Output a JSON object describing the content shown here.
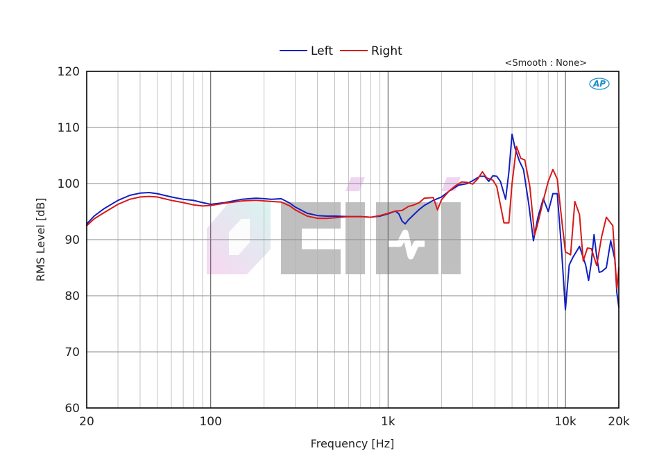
{
  "chart_data": {
    "type": "line",
    "xlabel": "Frequency [Hz]",
    "ylabel": "RMS Level [dB]",
    "x_scale": "log",
    "xlim": [
      20,
      20000
    ],
    "ylim": [
      60,
      120
    ],
    "x_ticks": [
      {
        "value": 20,
        "label": "20"
      },
      {
        "value": 100,
        "label": "100"
      },
      {
        "value": 1000,
        "label": "1k"
      },
      {
        "value": 10000,
        "label": "10k"
      },
      {
        "value": 20000,
        "label": "20k"
      }
    ],
    "y_ticks": [
      60,
      70,
      80,
      90,
      100,
      110,
      120
    ],
    "grid": true,
    "legend_position": "top-center",
    "annotation": "<Smooth : None>",
    "logo_text": "AP",
    "watermark": "CIMI",
    "series": [
      {
        "name": "Left",
        "color": "#1020c0",
        "points": [
          [
            20,
            92.8
          ],
          [
            22,
            94.2
          ],
          [
            25,
            95.5
          ],
          [
            30,
            97
          ],
          [
            35,
            97.9
          ],
          [
            40,
            98.3
          ],
          [
            45,
            98.4
          ],
          [
            50,
            98.2
          ],
          [
            60,
            97.6
          ],
          [
            70,
            97.2
          ],
          [
            80,
            97
          ],
          [
            90,
            96.6
          ],
          [
            100,
            96.3
          ],
          [
            120,
            96.6
          ],
          [
            150,
            97.2
          ],
          [
            180,
            97.4
          ],
          [
            200,
            97.3
          ],
          [
            220,
            97.2
          ],
          [
            250,
            97.3
          ],
          [
            280,
            96.5
          ],
          [
            300,
            95.8
          ],
          [
            350,
            94.7
          ],
          [
            400,
            94.3
          ],
          [
            450,
            94.2
          ],
          [
            500,
            94.2
          ],
          [
            600,
            94.1
          ],
          [
            700,
            94.1
          ],
          [
            800,
            94
          ],
          [
            900,
            94.2
          ],
          [
            1000,
            94.6
          ],
          [
            1100,
            95.1
          ],
          [
            1150,
            94.6
          ],
          [
            1200,
            93.3
          ],
          [
            1250,
            92.8
          ],
          [
            1300,
            93.5
          ],
          [
            1400,
            94.5
          ],
          [
            1500,
            95.4
          ],
          [
            1600,
            96.1
          ],
          [
            1800,
            97
          ],
          [
            2000,
            97.6
          ],
          [
            2200,
            98.6
          ],
          [
            2500,
            99.7
          ],
          [
            2800,
            100
          ],
          [
            3000,
            100.5
          ],
          [
            3300,
            101.3
          ],
          [
            3500,
            101.3
          ],
          [
            3700,
            100.4
          ],
          [
            3900,
            101.4
          ],
          [
            4100,
            101.3
          ],
          [
            4300,
            100.4
          ],
          [
            4600,
            97.2
          ],
          [
            4800,
            102
          ],
          [
            5000,
            108.8
          ],
          [
            5200,
            106.3
          ],
          [
            5500,
            104
          ],
          [
            5800,
            102.5
          ],
          [
            6200,
            96.5
          ],
          [
            6600,
            89.8
          ],
          [
            7000,
            94
          ],
          [
            7500,
            97.3
          ],
          [
            8000,
            95
          ],
          [
            8500,
            98.2
          ],
          [
            9000,
            98.2
          ],
          [
            9500,
            88.5
          ],
          [
            10000,
            77.5
          ],
          [
            10500,
            85.5
          ],
          [
            11000,
            86.8
          ],
          [
            12000,
            88.8
          ],
          [
            13000,
            85.5
          ],
          [
            13500,
            82.7
          ],
          [
            14000,
            86
          ],
          [
            14500,
            90.9
          ],
          [
            15000,
            87
          ],
          [
            15500,
            84.2
          ],
          [
            16000,
            84.3
          ],
          [
            17000,
            85
          ],
          [
            18000,
            89.8
          ],
          [
            19000,
            86.5
          ],
          [
            19500,
            80.5
          ],
          [
            20000,
            78
          ]
        ]
      },
      {
        "name": "Right",
        "color": "#d81818",
        "points": [
          [
            20,
            92.5
          ],
          [
            22,
            93.7
          ],
          [
            25,
            94.8
          ],
          [
            30,
            96.3
          ],
          [
            35,
            97.2
          ],
          [
            40,
            97.6
          ],
          [
            45,
            97.7
          ],
          [
            50,
            97.6
          ],
          [
            60,
            97
          ],
          [
            70,
            96.6
          ],
          [
            80,
            96.2
          ],
          [
            90,
            96
          ],
          [
            100,
            96.1
          ],
          [
            120,
            96.5
          ],
          [
            150,
            96.9
          ],
          [
            180,
            97
          ],
          [
            200,
            96.9
          ],
          [
            220,
            96.8
          ],
          [
            250,
            96.7
          ],
          [
            280,
            96
          ],
          [
            300,
            95.3
          ],
          [
            350,
            94.2
          ],
          [
            400,
            93.8
          ],
          [
            450,
            93.8
          ],
          [
            500,
            93.9
          ],
          [
            600,
            94.1
          ],
          [
            700,
            94.1
          ],
          [
            800,
            94
          ],
          [
            900,
            94.3
          ],
          [
            1000,
            94.7
          ],
          [
            1100,
            95.1
          ],
          [
            1200,
            95.2
          ],
          [
            1300,
            95.9
          ],
          [
            1400,
            96.2
          ],
          [
            1500,
            96.6
          ],
          [
            1600,
            97.4
          ],
          [
            1800,
            97.5
          ],
          [
            1900,
            95.3
          ],
          [
            2000,
            97.1
          ],
          [
            2200,
            98.6
          ],
          [
            2400,
            99.6
          ],
          [
            2600,
            100.3
          ],
          [
            2800,
            100.2
          ],
          [
            3000,
            99.9
          ],
          [
            3200,
            100.8
          ],
          [
            3400,
            102.1
          ],
          [
            3600,
            101
          ],
          [
            3900,
            100.6
          ],
          [
            4100,
            99.5
          ],
          [
            4300,
            96.2
          ],
          [
            4500,
            93
          ],
          [
            4800,
            93
          ],
          [
            5000,
            100
          ],
          [
            5300,
            106.6
          ],
          [
            5600,
            104.5
          ],
          [
            5900,
            104.2
          ],
          [
            6300,
            99.5
          ],
          [
            6700,
            90.8
          ],
          [
            7000,
            93
          ],
          [
            7600,
            97.7
          ],
          [
            8000,
            100.4
          ],
          [
            8500,
            102.5
          ],
          [
            9000,
            100.8
          ],
          [
            9500,
            94
          ],
          [
            10000,
            87.8
          ],
          [
            10700,
            87.3
          ],
          [
            11300,
            96.8
          ],
          [
            12000,
            94.5
          ],
          [
            12600,
            86.2
          ],
          [
            13300,
            88.5
          ],
          [
            14000,
            88.4
          ],
          [
            15000,
            85.4
          ],
          [
            16000,
            90.5
          ],
          [
            17000,
            94
          ],
          [
            18500,
            92.5
          ],
          [
            19500,
            81.2
          ],
          [
            20000,
            85
          ]
        ]
      }
    ]
  }
}
